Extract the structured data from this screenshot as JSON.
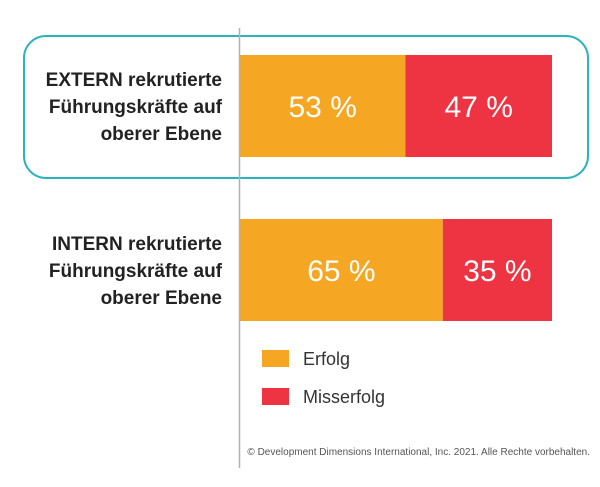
{
  "chart_data": {
    "type": "bar",
    "stacked": true,
    "orientation": "horizontal",
    "unit": "%",
    "categories": [
      "EXTERN rekrutierte Führungskräfte auf oberer Ebene",
      "INTERN rekrutierte Führungskräfte auf oberer Ebene"
    ],
    "category_lines": [
      [
        "EXTERN rekrutierte",
        "Führungskräfte auf",
        "oberer Ebene"
      ],
      [
        "INTERN rekrutierte",
        "Führungskräfte auf",
        "oberer Ebene"
      ]
    ],
    "series": [
      {
        "name": "Erfolg",
        "values": [
          53,
          65
        ],
        "labels": [
          "53 %",
          "65 %"
        ],
        "color": "#F5A623"
      },
      {
        "name": "Misserfolg",
        "values": [
          47,
          35
        ],
        "labels": [
          "47 %",
          "35 %"
        ],
        "color": "#EE3443"
      }
    ],
    "xlim": [
      0,
      100
    ],
    "grid": false,
    "legend_position": "bottom",
    "highlight": {
      "category_index": 0,
      "color": "#2BB3C0"
    }
  },
  "footer": "© Development Dimensions International, Inc. 2021. Alle Rechte vorbehalten."
}
